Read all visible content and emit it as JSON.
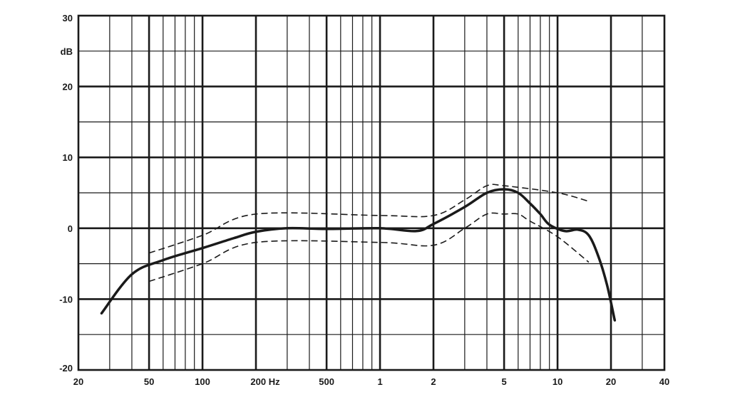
{
  "chart_data": {
    "type": "line",
    "title": "",
    "xscale": "log",
    "xlim": [
      20,
      40000
    ],
    "ylim": [
      -20,
      30
    ],
    "grid": true,
    "x_ticks": [
      {
        "value": 20,
        "label": "20"
      },
      {
        "value": 50,
        "label": "50"
      },
      {
        "value": 100,
        "label": "100"
      },
      {
        "value": 200,
        "label": "200 Hz"
      },
      {
        "value": 500,
        "label": "500"
      },
      {
        "value": 1000,
        "label": "1"
      },
      {
        "value": 2000,
        "label": "2"
      },
      {
        "value": 5000,
        "label": "5"
      },
      {
        "value": 10000,
        "label": "10"
      },
      {
        "value": 20000,
        "label": "20"
      },
      {
        "value": 40000,
        "label": "40"
      }
    ],
    "y_ticks": [
      {
        "value": 30,
        "label": "30"
      },
      {
        "value": 25,
        "label": "dB"
      },
      {
        "value": 20,
        "label": "20"
      },
      {
        "value": 10,
        "label": "10"
      },
      {
        "value": 0,
        "label": "0"
      },
      {
        "value": -10,
        "label": "-10"
      },
      {
        "value": -20,
        "label": "-20"
      }
    ],
    "series": [
      {
        "style": "solid",
        "points": [
          [
            27,
            -12
          ],
          [
            40,
            -6.5
          ],
          [
            60,
            -4.5
          ],
          [
            100,
            -2.8
          ],
          [
            150,
            -1.4
          ],
          [
            200,
            -0.5
          ],
          [
            300,
            0
          ],
          [
            500,
            -0.1
          ],
          [
            1000,
            0
          ],
          [
            1600,
            -0.4
          ],
          [
            2000,
            0.6
          ],
          [
            3000,
            3
          ],
          [
            4000,
            5
          ],
          [
            5000,
            5.5
          ],
          [
            6000,
            5
          ],
          [
            7000,
            3.5
          ],
          [
            8000,
            2
          ],
          [
            9000,
            0.5
          ],
          [
            11000,
            -0.4
          ],
          [
            13000,
            -0.2
          ],
          [
            15000,
            -1
          ],
          [
            17000,
            -4
          ],
          [
            19000,
            -8
          ],
          [
            21000,
            -13
          ]
        ]
      },
      {
        "style": "dashed",
        "points": [
          [
            50,
            -3.5
          ],
          [
            100,
            -1
          ],
          [
            200,
            2
          ],
          [
            1000,
            1.8
          ],
          [
            2000,
            1.8
          ],
          [
            3000,
            4
          ],
          [
            4000,
            6
          ],
          [
            5000,
            6
          ],
          [
            10000,
            5
          ],
          [
            15000,
            3.8
          ]
        ]
      },
      {
        "style": "dashed",
        "points": [
          [
            50,
            -7.5
          ],
          [
            100,
            -5
          ],
          [
            200,
            -2
          ],
          [
            1000,
            -2
          ],
          [
            2000,
            -2.4
          ],
          [
            3000,
            0
          ],
          [
            4000,
            2
          ],
          [
            5000,
            2
          ],
          [
            6000,
            2
          ],
          [
            7000,
            1
          ],
          [
            10000,
            -1.2
          ],
          [
            15000,
            -4.8
          ]
        ]
      }
    ]
  }
}
